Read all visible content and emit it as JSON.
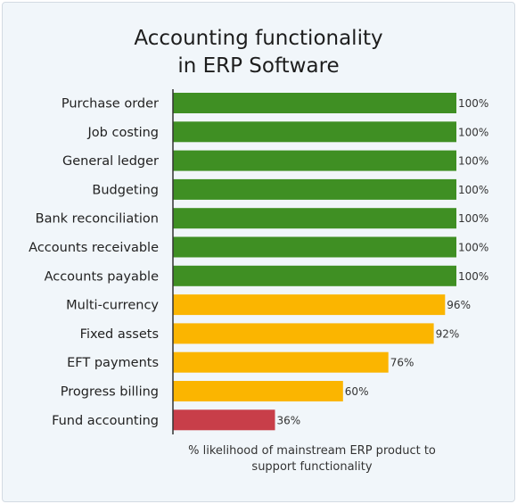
{
  "title_line1": "Accounting functionality",
  "title_line2": "in ERP Software",
  "colors": {
    "green": "#3f8f23",
    "yellow": "#fbb500",
    "red": "#c83e49",
    "axis": "#333333",
    "label": "#222222",
    "value_label": "#333333"
  },
  "chart_data": {
    "type": "bar",
    "orientation": "horizontal",
    "title": "Accounting functionality in ERP Software",
    "xlabel_line1": "% likelihood of mainstream ERP product to",
    "xlabel_line2": "support functionality",
    "xlim": [
      0,
      100
    ],
    "grid": false,
    "categories": [
      "Purchase order",
      "Job costing",
      "General ledger",
      "Budgeting",
      "Bank reconciliation",
      "Accounts receivable",
      "Accounts payable",
      "Multi-currency",
      "Fixed assets",
      "EFT payments",
      "Progress billing",
      "Fund accounting"
    ],
    "values": [
      100,
      100,
      100,
      100,
      100,
      100,
      100,
      96,
      92,
      76,
      60,
      36
    ],
    "value_labels": [
      "100%",
      "100%",
      "100%",
      "100%",
      "100%",
      "100%",
      "100%",
      "96%",
      "92%",
      "76%",
      "60%",
      "36%"
    ],
    "bar_colors": [
      "#3f8f23",
      "#3f8f23",
      "#3f8f23",
      "#3f8f23",
      "#3f8f23",
      "#3f8f23",
      "#3f8f23",
      "#fbb500",
      "#fbb500",
      "#fbb500",
      "#fbb500",
      "#c83e49"
    ]
  }
}
